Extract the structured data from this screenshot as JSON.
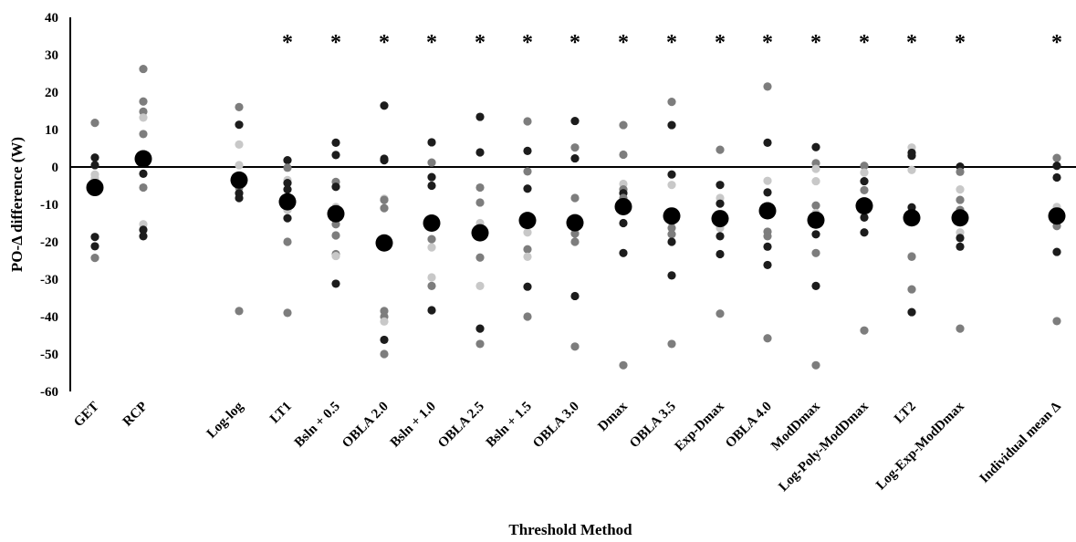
{
  "chart_data": {
    "type": "scatter",
    "title": "",
    "xlabel": "Threshold Method",
    "ylabel": "PO-Δ difference (W)",
    "ylim": [
      -60,
      40
    ],
    "yticks": [
      40,
      30,
      20,
      10,
      0,
      -10,
      -20,
      -30,
      -40,
      -50,
      -60
    ],
    "grid": false,
    "legend": "none",
    "reference_line_y": 0,
    "categories": [
      "GET",
      "RCP",
      "Log-log",
      "LT1",
      "Bsln + 0.5",
      "OBLA 2.0",
      "Bsln + 1.0",
      "OBLA 2.5",
      "Bsln + 1.5",
      "OBLA 3.0",
      "Dmax",
      "OBLA 3.5",
      "Exp-Dmax",
      "OBLA 4.0",
      "ModDmax",
      "Log-Poly-ModDmax",
      "LT2",
      "Log-Exp-ModDmax",
      "Individual mean Δ"
    ],
    "significance_marker": "*",
    "significant": [
      false,
      false,
      false,
      true,
      true,
      true,
      true,
      true,
      true,
      true,
      true,
      true,
      true,
      true,
      true,
      true,
      true,
      true,
      true
    ],
    "means": [
      -5.5,
      2.2,
      -3.5,
      -9.3,
      -12.5,
      -20.3,
      -15.0,
      -17.6,
      -14.3,
      -14.9,
      -10.6,
      -13.1,
      -13.8,
      -11.7,
      -14.2,
      -10.4,
      -13.6,
      -13.6,
      -13.1
    ],
    "colors": {
      "light": "#c8c8c8",
      "mid": "#7d7d7d",
      "dark": "#1c1c1c",
      "mean": "#000000"
    },
    "individuals": [
      [
        [
          11.8,
          "mid"
        ],
        [
          2.5,
          "dark"
        ],
        [
          0.5,
          "dark"
        ],
        [
          -2,
          "light"
        ],
        [
          -3,
          "light"
        ],
        [
          -5,
          "mid"
        ],
        [
          -18.7,
          "dark"
        ],
        [
          -21.2,
          "dark"
        ],
        [
          -24.3,
          "mid"
        ]
      ],
      [
        [
          26.2,
          "mid"
        ],
        [
          17.5,
          "mid"
        ],
        [
          14.8,
          "mid"
        ],
        [
          13.2,
          "light"
        ],
        [
          8.8,
          "mid"
        ],
        [
          3,
          "light"
        ],
        [
          -1.8,
          "dark"
        ],
        [
          -5.5,
          "mid"
        ],
        [
          -15.3,
          "light"
        ],
        [
          -16.8,
          "dark"
        ],
        [
          -18.5,
          "dark"
        ]
      ],
      [
        [
          16,
          "mid"
        ],
        [
          11.3,
          "dark"
        ],
        [
          6,
          "light"
        ],
        [
          0.5,
          "light"
        ],
        [
          -2.5,
          "light"
        ],
        [
          -5.5,
          "mid"
        ],
        [
          -7,
          "dark"
        ],
        [
          -8.3,
          "dark"
        ],
        [
          -38.5,
          "mid"
        ]
      ],
      [
        [
          1.8,
          "dark"
        ],
        [
          -0.2,
          "mid"
        ],
        [
          -3.5,
          "light"
        ],
        [
          -4.3,
          "dark"
        ],
        [
          -6,
          "dark"
        ],
        [
          -11.5,
          "light"
        ],
        [
          -13.7,
          "dark"
        ],
        [
          -20,
          "mid"
        ],
        [
          -39,
          "mid"
        ]
      ],
      [
        [
          6.5,
          "dark"
        ],
        [
          3.2,
          "dark"
        ],
        [
          -4,
          "mid"
        ],
        [
          -5.3,
          "dark"
        ],
        [
          -10.7,
          "light"
        ],
        [
          -15.3,
          "mid"
        ],
        [
          -18.3,
          "mid"
        ],
        [
          -23.3,
          "mid"
        ],
        [
          -23.8,
          "light"
        ],
        [
          -31.2,
          "dark"
        ]
      ],
      [
        [
          16.4,
          "dark"
        ],
        [
          2.2,
          "dark"
        ],
        [
          1.8,
          "dark"
        ],
        [
          -8.5,
          "light"
        ],
        [
          -8.8,
          "mid"
        ],
        [
          -11,
          "mid"
        ],
        [
          -38.5,
          "mid"
        ],
        [
          -40,
          "mid"
        ],
        [
          -41.3,
          "light"
        ],
        [
          -46.2,
          "dark"
        ],
        [
          -50,
          "mid"
        ]
      ],
      [
        [
          6.6,
          "dark"
        ],
        [
          1.2,
          "mid"
        ],
        [
          -2.7,
          "dark"
        ],
        [
          -5,
          "dark"
        ],
        [
          -19.3,
          "mid"
        ],
        [
          -21.5,
          "light"
        ],
        [
          -29.5,
          "light"
        ],
        [
          -31.8,
          "mid"
        ],
        [
          -38.3,
          "dark"
        ]
      ],
      [
        [
          13.4,
          "dark"
        ],
        [
          3.9,
          "dark"
        ],
        [
          -5.5,
          "mid"
        ],
        [
          -9.5,
          "mid"
        ],
        [
          -15,
          "light"
        ],
        [
          -24.2,
          "mid"
        ],
        [
          -31.8,
          "light"
        ],
        [
          -43.2,
          "dark"
        ],
        [
          -47.3,
          "mid"
        ]
      ],
      [
        [
          12.2,
          "mid"
        ],
        [
          4.3,
          "dark"
        ],
        [
          -1.2,
          "mid"
        ],
        [
          -5.8,
          "dark"
        ],
        [
          -17.5,
          "light"
        ],
        [
          -22,
          "mid"
        ],
        [
          -24,
          "light"
        ],
        [
          -32,
          "dark"
        ],
        [
          -40,
          "mid"
        ]
      ],
      [
        [
          12.3,
          "dark"
        ],
        [
          5.2,
          "mid"
        ],
        [
          2.3,
          "dark"
        ],
        [
          -8.3,
          "mid"
        ],
        [
          -17.8,
          "mid"
        ],
        [
          -20,
          "mid"
        ],
        [
          -34.5,
          "dark"
        ],
        [
          -48,
          "mid"
        ]
      ],
      [
        [
          11.2,
          "mid"
        ],
        [
          3.3,
          "mid"
        ],
        [
          -4.5,
          "light"
        ],
        [
          -6,
          "mid"
        ],
        [
          -7,
          "dark"
        ],
        [
          -8.3,
          "mid"
        ],
        [
          -15,
          "dark"
        ],
        [
          -23,
          "dark"
        ],
        [
          -53,
          "mid"
        ]
      ],
      [
        [
          17.4,
          "mid"
        ],
        [
          11.2,
          "dark"
        ],
        [
          -2,
          "dark"
        ],
        [
          -4.8,
          "light"
        ],
        [
          -14.5,
          "mid"
        ],
        [
          -16.3,
          "mid"
        ],
        [
          -18,
          "mid"
        ],
        [
          -20,
          "dark"
        ],
        [
          -29,
          "dark"
        ],
        [
          -47.3,
          "mid"
        ]
      ],
      [
        [
          4.6,
          "mid"
        ],
        [
          -4.8,
          "dark"
        ],
        [
          -8.3,
          "light"
        ],
        [
          -9.8,
          "dark"
        ],
        [
          -16.3,
          "light"
        ],
        [
          -18.5,
          "dark"
        ],
        [
          -23.3,
          "dark"
        ],
        [
          -39.2,
          "mid"
        ]
      ],
      [
        [
          21.5,
          "mid"
        ],
        [
          6.5,
          "dark"
        ],
        [
          -3.7,
          "light"
        ],
        [
          -6.8,
          "dark"
        ],
        [
          -17.3,
          "mid"
        ],
        [
          -18.5,
          "mid"
        ],
        [
          -21.3,
          "dark"
        ],
        [
          -26.2,
          "dark"
        ],
        [
          -45.8,
          "mid"
        ]
      ],
      [
        [
          5.3,
          "dark"
        ],
        [
          1,
          "mid"
        ],
        [
          -0.5,
          "light"
        ],
        [
          -3.8,
          "light"
        ],
        [
          -10.3,
          "mid"
        ],
        [
          -12.3,
          "light"
        ],
        [
          -18,
          "dark"
        ],
        [
          -23,
          "mid"
        ],
        [
          -31.8,
          "dark"
        ],
        [
          -53,
          "mid"
        ]
      ],
      [
        [
          0.3,
          "mid"
        ],
        [
          -1.5,
          "light"
        ],
        [
          -3.8,
          "dark"
        ],
        [
          -6.2,
          "mid"
        ],
        [
          -13.5,
          "dark"
        ],
        [
          -17.5,
          "dark"
        ],
        [
          -43.7,
          "mid"
        ]
      ],
      [
        [
          5.2,
          "light"
        ],
        [
          3.8,
          "dark"
        ],
        [
          3,
          "dark"
        ],
        [
          -0.8,
          "light"
        ],
        [
          -10.8,
          "dark"
        ],
        [
          -23.8,
          "light"
        ],
        [
          -24,
          "mid"
        ],
        [
          -32.7,
          "mid"
        ],
        [
          -38.8,
          "dark"
        ]
      ],
      [
        [
          0.1,
          "dark"
        ],
        [
          -1.3,
          "mid"
        ],
        [
          -6,
          "light"
        ],
        [
          -8.8,
          "mid"
        ],
        [
          -11.5,
          "mid"
        ],
        [
          -17.5,
          "light"
        ],
        [
          -19,
          "dark"
        ],
        [
          -21.3,
          "dark"
        ],
        [
          -43.2,
          "mid"
        ]
      ],
      [
        [
          2.4,
          "mid"
        ],
        [
          0.3,
          "dark"
        ],
        [
          -2.8,
          "dark"
        ],
        [
          -10.7,
          "light"
        ],
        [
          -14,
          "mid"
        ],
        [
          -15.8,
          "mid"
        ],
        [
          -22.7,
          "dark"
        ],
        [
          -41.2,
          "mid"
        ]
      ]
    ]
  }
}
